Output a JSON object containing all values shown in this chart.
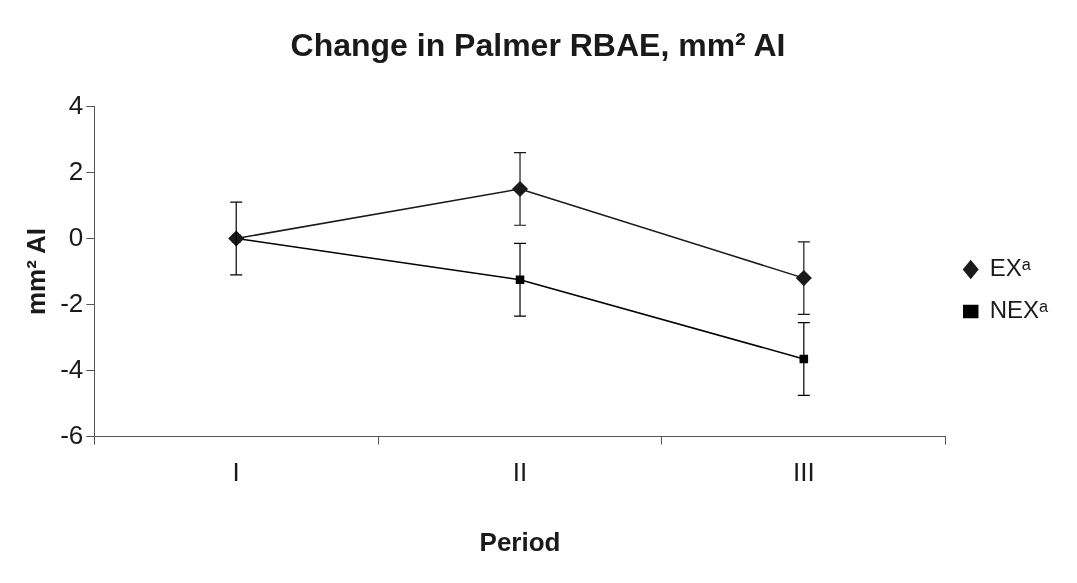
{
  "chart_data": {
    "type": "line",
    "title": "Change in Palmer RBAE, mm² AI",
    "xlabel": "Period",
    "ylabel": "mm² AI",
    "categories": [
      "I",
      "II",
      "III"
    ],
    "series": [
      {
        "name": "EXᵃ",
        "color": "#1a1a1a",
        "marker": "diamond",
        "values": [
          0,
          1.5,
          -1.2
        ],
        "errors": [
          null,
          1.1,
          1.1
        ]
      },
      {
        "name": "NEXᵃ",
        "color": "#000000",
        "marker": "square",
        "values": [
          0,
          -1.25,
          -3.65
        ],
        "errors": [
          1.1,
          1.1,
          1.1
        ]
      }
    ],
    "ylim": [
      -6,
      4
    ],
    "yticks": [
      -6,
      -4,
      -2,
      0,
      2,
      4
    ],
    "grid": false,
    "legend": "right",
    "line_style": "solid"
  }
}
